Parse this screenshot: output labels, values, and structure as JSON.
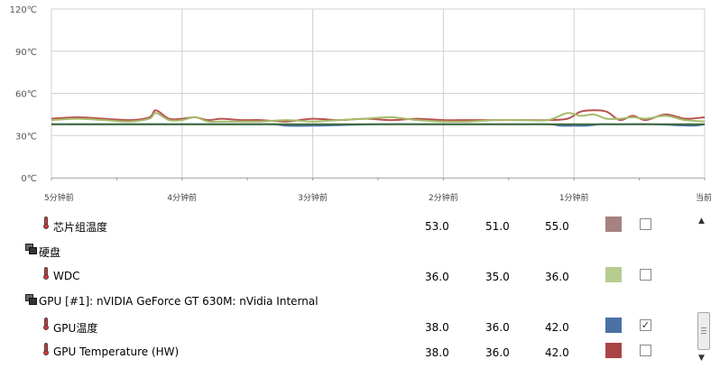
{
  "chart_data": {
    "type": "line",
    "y_ticks": [
      "0℃",
      "30℃",
      "60℃",
      "90℃",
      "120℃"
    ],
    "y_tick_values": [
      0,
      30,
      60,
      90,
      120
    ],
    "ylim": [
      0,
      120
    ],
    "x_ticks": [
      "5分钟前",
      "4分钟前",
      "3分钟前",
      "2分钟前",
      "1分钟前",
      "当前"
    ],
    "xlim": [
      0,
      5
    ],
    "grid": true,
    "series": [
      {
        "color": "#b9544f",
        "x": [
          0,
          0.2,
          0.4,
          0.6,
          0.75,
          0.8,
          0.9,
          1.0,
          1.1,
          1.2,
          1.3,
          1.45,
          1.6,
          1.8,
          2.0,
          2.2,
          2.4,
          2.6,
          2.8,
          3.0,
          3.2,
          3.4,
          3.6,
          3.8,
          3.95,
          4.05,
          4.15,
          4.25,
          4.35,
          4.45,
          4.55,
          4.7,
          4.85,
          5.0
        ],
        "values": [
          42,
          43,
          42,
          41,
          43,
          48,
          42,
          42,
          43,
          41,
          42,
          41,
          41,
          40,
          42,
          41,
          42,
          41,
          42,
          41,
          41,
          41,
          41,
          41,
          42,
          47,
          48,
          47,
          41,
          44,
          41,
          45,
          42,
          43
        ]
      },
      {
        "color": "#a7bb6c",
        "x": [
          0,
          0.2,
          0.4,
          0.6,
          0.75,
          0.8,
          0.9,
          1.0,
          1.1,
          1.2,
          1.3,
          1.45,
          1.6,
          1.8,
          2.0,
          2.2,
          2.4,
          2.6,
          2.8,
          3.0,
          3.2,
          3.4,
          3.6,
          3.8,
          3.95,
          4.05,
          4.15,
          4.25,
          4.35,
          4.45,
          4.55,
          4.7,
          4.85,
          5.0
        ],
        "values": [
          41,
          42,
          41,
          40,
          42,
          46,
          41,
          41,
          43,
          40,
          40,
          40,
          40,
          41,
          40,
          41,
          42,
          43,
          41,
          40,
          40,
          41,
          41,
          41,
          46,
          44,
          45,
          42,
          42,
          43,
          42,
          44,
          41,
          40
        ]
      },
      {
        "color": "#4673a8",
        "x": [
          0,
          0.5,
          1.0,
          1.5,
          1.7,
          1.8,
          2.0,
          2.5,
          3.0,
          3.5,
          3.8,
          3.9,
          4.0,
          4.1,
          4.2,
          4.3,
          4.6,
          4.9,
          5.0
        ],
        "values": [
          38,
          38,
          38,
          38,
          38,
          37,
          37,
          38,
          38,
          38,
          38,
          37,
          37,
          37,
          38,
          38,
          38,
          37,
          38
        ]
      },
      {
        "color": "#3f6a3a",
        "x": [
          0,
          5.0
        ],
        "values": [
          38,
          38
        ]
      }
    ]
  },
  "sensors": [
    {
      "kind": "sensor",
      "label": "芯片组温度",
      "v1": "53.0",
      "v2": "51.0",
      "v3": "55.0",
      "color": "#a58181",
      "checked": false
    },
    {
      "kind": "group",
      "label": "硬盘"
    },
    {
      "kind": "sensor",
      "label": "WDC",
      "v1": "36.0",
      "v2": "35.0",
      "v3": "36.0",
      "color": "#b6cd8f",
      "checked": false
    },
    {
      "kind": "group",
      "label": "GPU [#1]: nVIDIA GeForce GT 630M: nVidia Internal"
    },
    {
      "kind": "sensor",
      "label": "GPU温度",
      "v1": "38.0",
      "v2": "36.0",
      "v3": "42.0",
      "color": "#4a70a4",
      "checked": true
    },
    {
      "kind": "sensor",
      "label": "GPU Temperature (HW)",
      "v1": "38.0",
      "v2": "36.0",
      "v3": "42.0",
      "color": "#a94545",
      "checked": false
    }
  ],
  "check_mark": "✓",
  "scroll_up_glyph": "▲",
  "scroll_down_glyph": "▼"
}
